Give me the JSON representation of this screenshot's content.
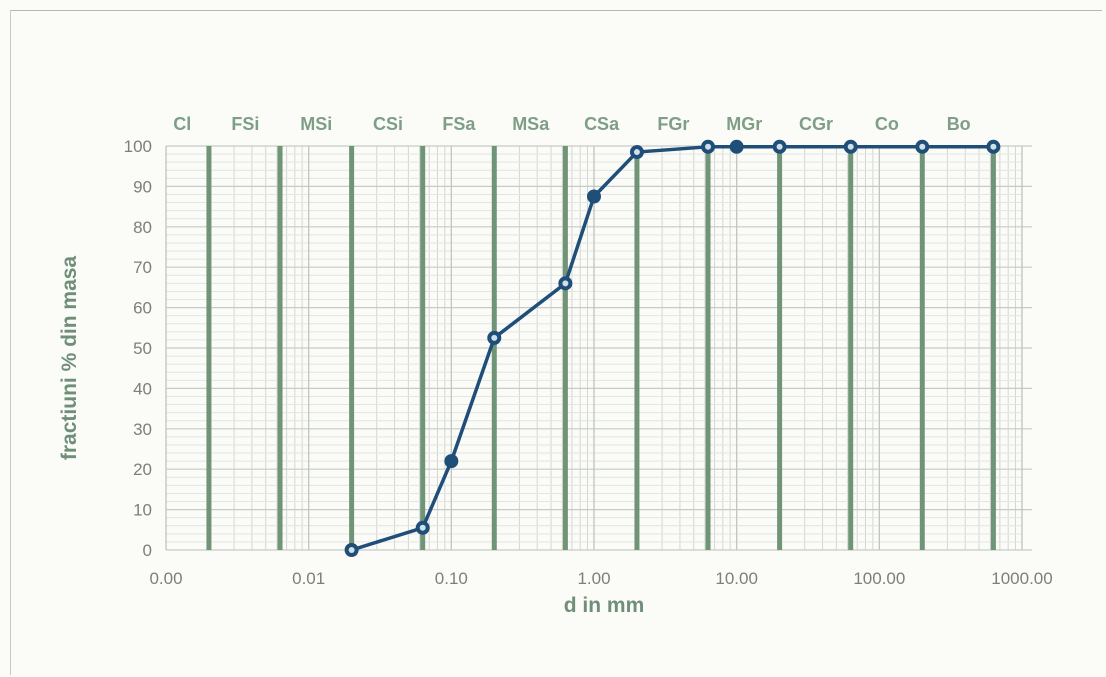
{
  "chart_data": {
    "type": "line",
    "xscale": "log",
    "xlim": [
      0.001,
      1000
    ],
    "ylim": [
      0,
      100
    ],
    "xlabel": "d in mm",
    "ylabel": "fractiuni % din masa",
    "x_tick_labels": [
      "0.00",
      "0.01",
      "0.10",
      "1.00",
      "10.00",
      "100.00",
      "1000.00"
    ],
    "x_tick_values": [
      0.001,
      0.01,
      0.1,
      1,
      10,
      100,
      1000
    ],
    "y_ticks": [
      0,
      10,
      20,
      30,
      40,
      50,
      60,
      70,
      80,
      90,
      100
    ],
    "grid": true,
    "class_boundaries": [
      0.002,
      0.0063,
      0.02,
      0.063,
      0.2,
      0.63,
      2,
      6.3,
      20,
      63,
      200,
      630
    ],
    "class_labels": [
      {
        "label": "Cl",
        "x": 0.0013
      },
      {
        "label": "FSi",
        "x": 0.0036
      },
      {
        "label": "MSi",
        "x": 0.0113
      },
      {
        "label": "CSi",
        "x": 0.036
      },
      {
        "label": "FSa",
        "x": 0.113
      },
      {
        "label": "MSa",
        "x": 0.36
      },
      {
        "label": "CSa",
        "x": 1.13
      },
      {
        "label": "FGr",
        "x": 3.6
      },
      {
        "label": "MGr",
        "x": 11.3
      },
      {
        "label": "CGr",
        "x": 36
      },
      {
        "label": "Co",
        "x": 113
      },
      {
        "label": "Bo",
        "x": 360
      }
    ],
    "series": [
      {
        "x": [
          0.02,
          0.063,
          0.1,
          0.2,
          0.63,
          1,
          2,
          6.3,
          10,
          20,
          63,
          200,
          630
        ],
        "values": [
          0,
          5.5,
          22,
          52.5,
          66,
          87.5,
          98.5,
          99.8,
          99.8,
          99.8,
          99.8,
          99.8,
          99.8
        ],
        "color": "#1f4e79"
      }
    ],
    "colors": {
      "boundary": "#6f9476",
      "grid": "#d3d7d3",
      "line": "#1f4e79",
      "marker": "#1f4e79",
      "marker_highlight": "#cfe0e8"
    }
  }
}
